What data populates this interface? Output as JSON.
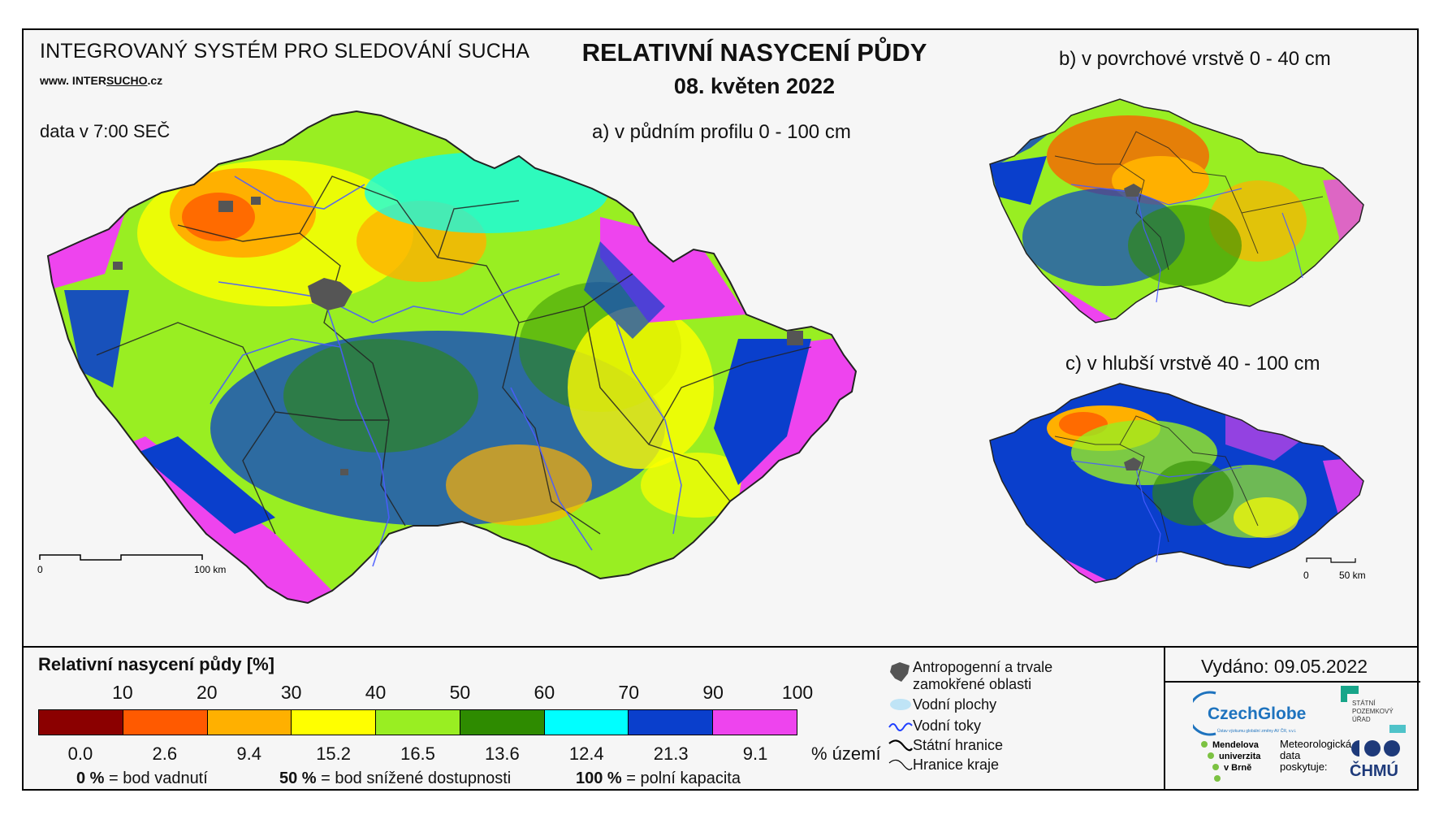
{
  "header": {
    "system_title": "INTEGROVANÝ SYSTÉM PRO SLEDOVÁNÍ SUCHA",
    "url_prefix": "www. INTER",
    "url_underlined": "SUCHO",
    "url_suffix": ".cz",
    "data_time": "data v 7:00 SEČ",
    "main_title": "RELATIVNÍ NASYCENÍ PŮDY",
    "date": "08. květen 2022"
  },
  "maps": {
    "a_label": "a) v půdním profilu 0 - 100 cm",
    "b_label": "b) v povrchové vrstvě 0 - 40 cm",
    "c_label": "c) v hlubší vrstvě 40 - 100 cm",
    "scale_main_zero": "0",
    "scale_main_end": "100 km",
    "scale_small_zero": "0",
    "scale_small_end": "50 km"
  },
  "legend": {
    "title": "Relativní nasycení půdy [%]",
    "thresholds": [
      "10",
      "20",
      "30",
      "40",
      "50",
      "60",
      "70",
      "90",
      "100"
    ],
    "classes": [
      {
        "color": "#8b0000",
        "percent": "0.0"
      },
      {
        "color": "#ff5a00",
        "percent": "2.6"
      },
      {
        "color": "#ffb000",
        "percent": "9.4"
      },
      {
        "color": "#ffff00",
        "percent": "15.2"
      },
      {
        "color": "#99ee22",
        "percent": "16.5"
      },
      {
        "color": "#2e8b00",
        "percent": "13.6"
      },
      {
        "color": "#00ffff",
        "percent": "12.4"
      },
      {
        "color": "#0a3fcc",
        "percent": "21.3"
      },
      {
        "color": "#ee44ee",
        "percent": "9.1"
      }
    ],
    "percent_unit": "% území",
    "notes": [
      {
        "value": "0 %",
        "text": "= bod vadnutí"
      },
      {
        "value": "50 %",
        "text": "= bod snížené dostupnosti"
      },
      {
        "value": "100 %",
        "text": "= polní kapacita"
      }
    ]
  },
  "symbols": {
    "anthropogenic_line1": "Antropogenní a trvale",
    "anthropogenic_line2": "zamokřené oblasti",
    "water_bodies": "Vodní plochy",
    "water_courses": "Vodní toky",
    "state_border": "Státní hranice",
    "region_border": "Hranice kraje"
  },
  "footer": {
    "issued": "Vydáno: 09.05.2022",
    "czechglobe": "CzechGlobe",
    "czechglobe_sub": "Ústav výzkumu globální změny AV ČR, v.v.i.",
    "spu_line1": "STÁTNÍ",
    "spu_line2": "POZEMKOVÝ",
    "spu_line3": "ÚŘAD",
    "mendel_line1": "Mendelova",
    "mendel_line2": "univerzita",
    "mendel_line3": "v Brně",
    "meteo_line1": "Meteorologická",
    "meteo_line2": "data",
    "meteo_line3": "poskytuje:",
    "chmu": "ČHMÚ"
  }
}
